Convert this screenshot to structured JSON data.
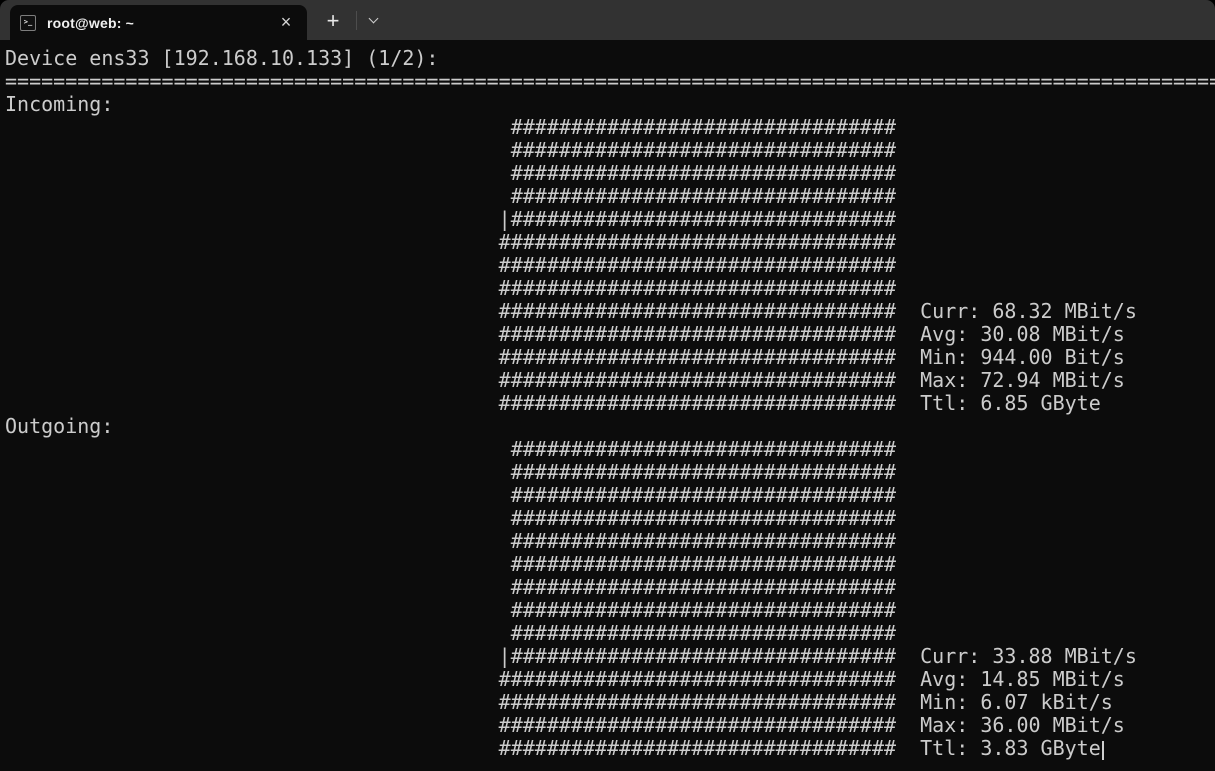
{
  "window": {
    "title_bar": {
      "tab": {
        "title": "root@web: ~",
        "icon_glyph": ">_",
        "close_glyph": "×"
      },
      "new_tab_glyph": "+"
    }
  },
  "colors": {
    "title_bar_bg": "#323232",
    "tab_active_bg": "#0c0c0c",
    "terminal_bg": "#0c0c0c",
    "terminal_fg": "#cccccc"
  },
  "terminal": {
    "device_line": "Device ens33 [192.168.10.133] (1/2):",
    "separator_char": "=",
    "separator_length": 102,
    "graph_indent": 41,
    "stats_gap": 2,
    "sections": [
      {
        "label": "Incoming:",
        "graph_rows": [
          " ################################",
          " ################################",
          " ################################",
          " ################################",
          "|################################",
          "#################################",
          "#################################",
          "#################################",
          "#################################",
          "#################################",
          "#################################",
          "#################################",
          "#################################"
        ],
        "stats": [
          "Curr: 68.32 MBit/s",
          "Avg: 30.08 MBit/s",
          "Min: 944.00 Bit/s",
          "Max: 72.94 MBit/s",
          "Ttl: 6.85 GByte"
        ],
        "cursor_after_stats": false
      },
      {
        "label": "Outgoing:",
        "graph_rows": [
          " ################################",
          " ################################",
          " ################################",
          " ################################",
          " ################################",
          " ################################",
          " ################################",
          " ################################",
          " ################################",
          "|################################",
          "#################################",
          "#################################",
          "#################################",
          "#################################"
        ],
        "stats": [
          "Curr: 33.88 MBit/s",
          "Avg: 14.85 MBit/s",
          "Min: 6.07 kBit/s",
          "Max: 36.00 MBit/s",
          "Ttl: 3.83 GByte"
        ],
        "cursor_after_stats": true
      }
    ]
  }
}
